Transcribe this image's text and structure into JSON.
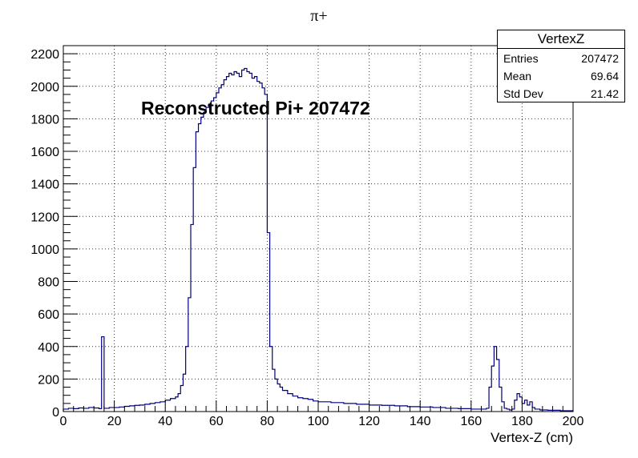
{
  "chart_data": {
    "type": "histogram",
    "title": "π+",
    "xlabel": "Vertex-Z (cm)",
    "ylabel": "",
    "xlim": [
      0,
      200
    ],
    "ylim": [
      0,
      2250
    ],
    "grid": true,
    "annotation": "Reconstructed Pi+ 207472",
    "x_ticks": [
      0,
      20,
      40,
      60,
      80,
      100,
      120,
      140,
      160,
      180,
      200
    ],
    "y_ticks": [
      0,
      200,
      400,
      600,
      800,
      1000,
      1200,
      1400,
      1600,
      1800,
      2000,
      2200
    ],
    "series": [
      {
        "name": "VertexZ",
        "color": "#00007f",
        "x": [
          0,
          2,
          4,
          6,
          8,
          10,
          12,
          14,
          15,
          16,
          18,
          20,
          22,
          24,
          26,
          28,
          30,
          32,
          34,
          36,
          38,
          40,
          42,
          44,
          45,
          46,
          47,
          48,
          49,
          50,
          51,
          52,
          53,
          54,
          55,
          56,
          57,
          58,
          59,
          60,
          61,
          62,
          63,
          64,
          65,
          66,
          67,
          68,
          69,
          70,
          71,
          72,
          73,
          74,
          75,
          76,
          77,
          78,
          79,
          80,
          81,
          82,
          83,
          84,
          85,
          86,
          88,
          90,
          92,
          94,
          96,
          98,
          100,
          105,
          110,
          115,
          120,
          125,
          130,
          135,
          140,
          145,
          150,
          155,
          160,
          163,
          166,
          167,
          168,
          169,
          170,
          171,
          172,
          173,
          174,
          175,
          176,
          177,
          178,
          179,
          180,
          181,
          182,
          183,
          184,
          185,
          187,
          190,
          195,
          200
        ],
        "y": [
          15,
          20,
          18,
          22,
          20,
          25,
          22,
          18,
          460,
          20,
          25,
          25,
          28,
          32,
          35,
          38,
          40,
          45,
          50,
          55,
          60,
          70,
          80,
          90,
          110,
          160,
          230,
          400,
          700,
          1150,
          1500,
          1720,
          1770,
          1810,
          1840,
          1870,
          1890,
          1910,
          1930,
          1960,
          1990,
          2010,
          2040,
          2060,
          2080,
          2070,
          2090,
          2080,
          2060,
          2100,
          2110,
          2090,
          2080,
          2050,
          2060,
          2030,
          2020,
          1990,
          1950,
          1100,
          400,
          260,
          200,
          170,
          150,
          130,
          110,
          95,
          85,
          80,
          75,
          65,
          60,
          55,
          50,
          45,
          40,
          38,
          35,
          30,
          28,
          25,
          20,
          18,
          15,
          15,
          20,
          150,
          280,
          400,
          320,
          150,
          60,
          20,
          15,
          10,
          15,
          70,
          110,
          90,
          50,
          70,
          40,
          60,
          25,
          15,
          10,
          8,
          5,
          0
        ]
      }
    ],
    "stats": {
      "title": "VertexZ",
      "rows": [
        {
          "label": "Entries",
          "value": "207472"
        },
        {
          "label": "Mean",
          "value": "69.64"
        },
        {
          "label": "Std Dev",
          "value": "21.42"
        }
      ]
    }
  }
}
